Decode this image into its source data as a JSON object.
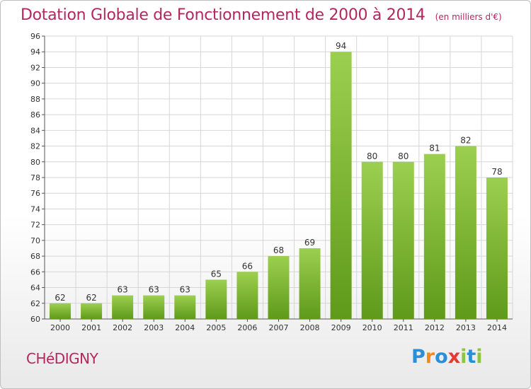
{
  "header": {
    "title": "Dotation Globale de Fonctionnement de 2000 à 2014",
    "unit": "(en milliers d'€)"
  },
  "footer": {
    "city": "CHéDIGNY",
    "brand": "Proxiti"
  },
  "colors": {
    "title": "#b3275f",
    "bar_top": "#9ccf4f",
    "bar_bottom": "#5f9a1a",
    "grid": "#d6d6d6",
    "brand_letters": [
      "#2a8fd6",
      "#f08a1c",
      "#2a8fd6",
      "#e53b2f",
      "#8cc63f",
      "#2a8fd6",
      "#8cc63f"
    ]
  },
  "chart_data": {
    "type": "bar",
    "title": "Dotation Globale de Fonctionnement de 2000 à 2014",
    "subtitle": "(en milliers d'€)",
    "xlabel": "",
    "ylabel": "",
    "categories": [
      "2000",
      "2001",
      "2002",
      "2003",
      "2004",
      "2005",
      "2006",
      "2007",
      "2008",
      "2009",
      "2010",
      "2011",
      "2012",
      "2013",
      "2014"
    ],
    "values": [
      62,
      62,
      63,
      63,
      63,
      65,
      66,
      68,
      69,
      94,
      80,
      80,
      81,
      82,
      78
    ],
    "ylim": [
      60,
      96
    ],
    "yticks": [
      60,
      62,
      64,
      66,
      68,
      70,
      72,
      74,
      76,
      78,
      80,
      82,
      84,
      86,
      88,
      90,
      92,
      94,
      96
    ],
    "grid": true,
    "legend": "none"
  }
}
